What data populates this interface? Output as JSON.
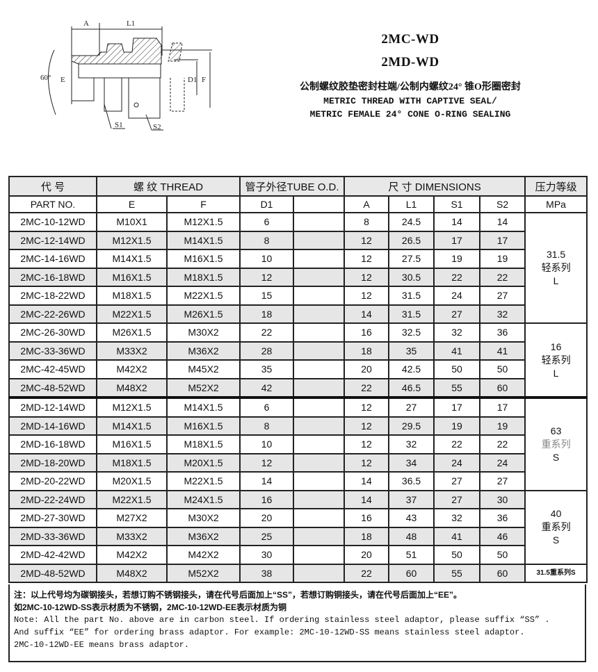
{
  "drawing": {
    "labels": {
      "a": "A",
      "l1": "L1",
      "angle": "60°",
      "e": "E",
      "d1": "D1",
      "f": "F",
      "s1": "S1",
      "s2": "S2"
    }
  },
  "header": {
    "model1": "2MC-WD",
    "model2": "2MD-WD",
    "title_cn": "公制螺纹胶垫密封柱端/公制内螺纹24° 锥O形圈密封",
    "title_en1": "METRIC THREAD WITH CAPTIVE SEAL/",
    "title_en2": "METRIC FEMALE 24° CONE O-RING SEALING"
  },
  "table": {
    "head1": {
      "code": "代 号",
      "thread": "螺 纹  THREAD",
      "tube": "管子外径TUBE O.D.",
      "dims": "尺 寸  DIMENSIONS",
      "pressure": "压力等级"
    },
    "head2": {
      "part": "PART NO.",
      "e": "E",
      "f": "F",
      "d1": "D1",
      "blank": "",
      "a": "A",
      "l1": "L1",
      "s1": "S1",
      "s2": "S2",
      "mpa": "MPa"
    },
    "rows": [
      [
        "2MC-10-12WD",
        "M10X1",
        "M12X1.5",
        "6",
        "",
        "8",
        "24.5",
        "14",
        "14"
      ],
      [
        "2MC-12-14WD",
        "M12X1.5",
        "M14X1.5",
        "8",
        "",
        "12",
        "26.5",
        "17",
        "17"
      ],
      [
        "2MC-14-16WD",
        "M14X1.5",
        "M16X1.5",
        "10",
        "",
        "12",
        "27.5",
        "19",
        "19"
      ],
      [
        "2MC-16-18WD",
        "M16X1.5",
        "M18X1.5",
        "12",
        "",
        "12",
        "30.5",
        "22",
        "22"
      ],
      [
        "2MC-18-22WD",
        "M18X1.5",
        "M22X1.5",
        "15",
        "",
        "12",
        "31.5",
        "24",
        "27"
      ],
      [
        "2MC-22-26WD",
        "M22X1.5",
        "M26X1.5",
        "18",
        "",
        "14",
        "31.5",
        "27",
        "32"
      ],
      [
        "2MC-26-30WD",
        "M26X1.5",
        "M30X2",
        "22",
        "",
        "16",
        "32.5",
        "32",
        "36"
      ],
      [
        "2MC-33-36WD",
        "M33X2",
        "M36X2",
        "28",
        "",
        "18",
        "35",
        "41",
        "41"
      ],
      [
        "2MC-42-45WD",
        "M42X2",
        "M45X2",
        "35",
        "",
        "20",
        "42.5",
        "50",
        "50"
      ],
      [
        "2MC-48-52WD",
        "M48X2",
        "M52X2",
        "42",
        "",
        "22",
        "46.5",
        "55",
        "60"
      ],
      [
        "2MD-12-14WD",
        "M12X1.5",
        "M14X1.5",
        "6",
        "",
        "12",
        "27",
        "17",
        "17"
      ],
      [
        "2MD-14-16WD",
        "M14X1.5",
        "M16X1.5",
        "8",
        "",
        "12",
        "29.5",
        "19",
        "19"
      ],
      [
        "2MD-16-18WD",
        "M16X1.5",
        "M18X1.5",
        "10",
        "",
        "12",
        "32",
        "22",
        "22"
      ],
      [
        "2MD-18-20WD",
        "M18X1.5",
        "M20X1.5",
        "12",
        "",
        "12",
        "34",
        "24",
        "24"
      ],
      [
        "2MD-20-22WD",
        "M20X1.5",
        "M22X1.5",
        "14",
        "",
        "14",
        "36.5",
        "27",
        "27"
      ],
      [
        "2MD-22-24WD",
        "M22X1.5",
        "M24X1.5",
        "16",
        "",
        "14",
        "37",
        "27",
        "30"
      ],
      [
        "2MD-27-30WD",
        "M27X2",
        "M30X2",
        "20",
        "",
        "16",
        "43",
        "32",
        "36"
      ],
      [
        "2MD-33-36WD",
        "M33X2",
        "M36X2",
        "25",
        "",
        "18",
        "48",
        "41",
        "46"
      ],
      [
        "2MD-42-42WD",
        "M42X2",
        "M42X2",
        "30",
        "",
        "20",
        "51",
        "50",
        "50"
      ],
      [
        "2MD-48-52WD",
        "M48X2",
        "M52X2",
        "38",
        "",
        "22",
        "60",
        "55",
        "60"
      ]
    ],
    "pressure_groups": [
      {
        "start": 0,
        "span": 6,
        "value": "31.5",
        "series": "轻系列",
        "code": "L"
      },
      {
        "start": 6,
        "span": 4,
        "value": "16",
        "series": "轻系列",
        "code": "L"
      },
      {
        "start": 10,
        "span": 5,
        "value": "63",
        "series": "重系列",
        "code": "S",
        "series_grey": true
      },
      {
        "start": 15,
        "span": 4,
        "value": "40",
        "series": "重系列",
        "code": "S"
      },
      {
        "start": 19,
        "span": 1,
        "value": "31.5重系列S",
        "small": true
      }
    ]
  },
  "note": {
    "cn1": "注：以上代号均为碳钢接头，若想订购不锈钢接头，请在代号后面加上“SS”，若想订购铜接头，请在代号后面加上“EE”。",
    "cn2": "如2MC-10-12WD-SS表示材质为不锈钢，2MC-10-12WD-EE表示材质为铜",
    "en1": "Note: All the part No. above are in carbon steel. If ordering stainless steel adaptor, please suffix “SS” .",
    "en2": "And suffix “EE” for ordering brass adaptor. For example: 2MC-10-12WD-SS  means stainless steel adaptor.",
    "en3": "2MC-10-12WD-EE means brass adaptor."
  }
}
